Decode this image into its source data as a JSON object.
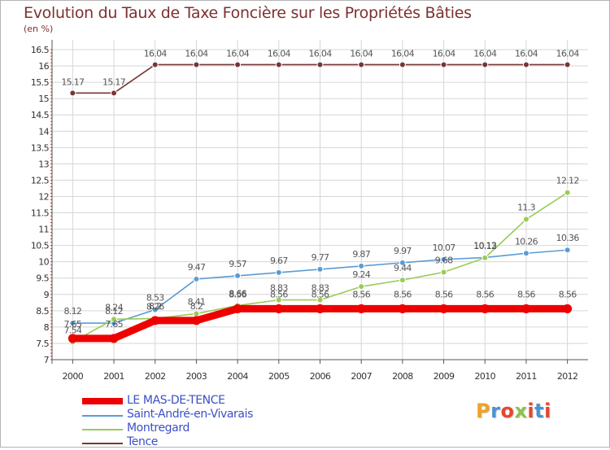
{
  "title": "Evolution du Taux de Taxe Foncière sur les Propriétés Bâties",
  "subtitle": "(en %)",
  "logo": {
    "text": "Proxiti",
    "letter_colors": [
      "#f0a323",
      "#4a93d0",
      "#e5482c",
      "#8bc34a",
      "#e5482c",
      "#4a93d0",
      "#e5482c"
    ]
  },
  "chart_data": {
    "type": "line",
    "x": [
      2000,
      2001,
      2002,
      2003,
      2004,
      2005,
      2006,
      2007,
      2008,
      2009,
      2010,
      2011,
      2012
    ],
    "y_ticks": [
      "7",
      "7.5",
      "8",
      "8.5",
      "9",
      "9.5",
      "10",
      "10.5",
      "11",
      "11.5",
      "12",
      "12.5",
      "13",
      "13.5",
      "14",
      "14.5",
      "15",
      "15.5",
      "16",
      "16.5"
    ],
    "ylim": [
      7,
      16.5
    ],
    "grid": true,
    "legend_position": "bottom-left",
    "series": [
      {
        "name": "LE MAS-DE-TENCE",
        "color": "#ee0000",
        "values": [
          7.65,
          7.65,
          8.2,
          8.2,
          8.56,
          8.56,
          8.56,
          8.56,
          8.56,
          8.56,
          8.56,
          8.56,
          8.56
        ],
        "labels": [
          "7.65",
          "7.65",
          "8.2",
          "8.2",
          "8.56",
          "8.56",
          "8.56",
          "8.56",
          "8.56",
          "8.56",
          "8.56",
          "8.56",
          "8.56"
        ]
      },
      {
        "name": "Saint-André-en-Vivarais",
        "color": "#5b9bd5",
        "values": [
          8.12,
          8.12,
          8.53,
          9.47,
          9.57,
          9.67,
          9.77,
          9.87,
          9.97,
          10.07,
          10.13,
          10.26,
          10.36
        ],
        "labels": [
          "8.12",
          "8.12",
          "8.53",
          "9.47",
          "9.57",
          "9.67",
          "9.77",
          "9.87",
          "9.97",
          "10.07",
          "10.13",
          "10.26",
          "10.36"
        ]
      },
      {
        "name": "Montregard",
        "color": "#99cc55",
        "values": [
          7.54,
          8.24,
          8.26,
          8.41,
          8.66,
          8.83,
          8.83,
          9.24,
          9.44,
          9.68,
          10.12,
          11.3,
          12.12
        ],
        "labels": [
          "7.54",
          "8.24",
          "8.26",
          "8.41",
          "8.66",
          "8.83",
          "8.83",
          "9.24",
          "9.44",
          "9.68",
          "10.12",
          "11.3",
          "12.12"
        ]
      },
      {
        "name": "Tence",
        "color": "#7a3535",
        "values": [
          15.17,
          15.17,
          16.04,
          16.04,
          16.04,
          16.04,
          16.04,
          16.04,
          16.04,
          16.04,
          16.04,
          16.04,
          16.04
        ],
        "labels": [
          "15.17",
          "15.17",
          "16.04",
          "16.04",
          "16.04",
          "16.04",
          "16.04",
          "16.04",
          "16.04",
          "16.04",
          "16.04",
          "16.04",
          "16.04"
        ]
      }
    ]
  }
}
